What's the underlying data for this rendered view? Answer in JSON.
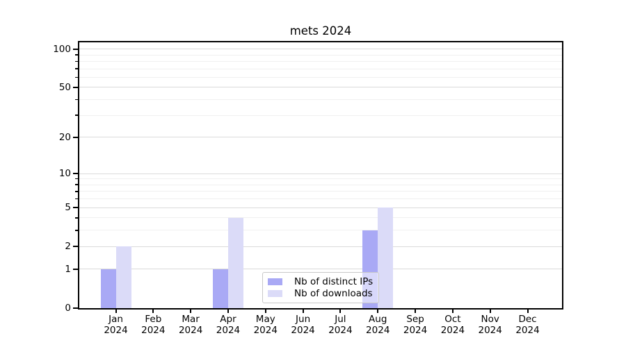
{
  "chart_data": {
    "type": "bar",
    "title": "mets 2024",
    "categories": [
      "Jan",
      "Feb",
      "Mar",
      "Apr",
      "May",
      "Jun",
      "Jul",
      "Aug",
      "Sep",
      "Oct",
      "Nov",
      "Dec"
    ],
    "category_year": "2024",
    "series": [
      {
        "name": "Nb of distinct IPs",
        "color": "#a9a9f5",
        "values": [
          1,
          0,
          0,
          1,
          0,
          0,
          0,
          3,
          0,
          0,
          0,
          0
        ]
      },
      {
        "name": "Nb of downloads",
        "color": "#dbdbf8",
        "values": [
          2,
          0,
          0,
          4,
          0,
          0,
          0,
          5,
          0,
          0,
          0,
          0
        ]
      }
    ],
    "yscale": "log1p",
    "ylim": [
      0,
      114
    ],
    "y_major_ticks": [
      100,
      50,
      20,
      10,
      5,
      2,
      1,
      0
    ],
    "y_minor_ticks": [
      90,
      80,
      70,
      60,
      40,
      30,
      9,
      8,
      7,
      6,
      4,
      3
    ],
    "grid": true,
    "legend_position": "lower center",
    "colors": {
      "major_grid": "#dadada",
      "minor_grid": "#f0f0f0",
      "axis": "#000000",
      "background": "#ffffff"
    }
  }
}
